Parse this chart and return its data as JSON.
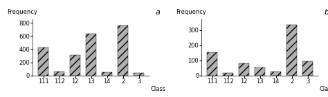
{
  "chart_a": {
    "title": "a",
    "ylabel": "Frequency",
    "xlabel": "Class",
    "categories": [
      "111",
      "112",
      "12",
      "13",
      "14",
      "2",
      "3"
    ],
    "values": [
      430,
      60,
      310,
      630,
      55,
      760,
      45
    ],
    "ylim": [
      0,
      850
    ],
    "yticks": [
      0,
      200,
      400,
      600,
      800
    ]
  },
  "chart_b": {
    "title": "b",
    "ylabel": "Frequency",
    "xlabel": "Class",
    "categories": [
      "111",
      "112",
      "12",
      "13",
      "14",
      "2",
      "3"
    ],
    "values": [
      155,
      20,
      80,
      55,
      25,
      335,
      95
    ],
    "ylim": [
      0,
      370
    ],
    "yticks": [
      0,
      100,
      200,
      300
    ]
  },
  "bar_color": "#b0b0b0",
  "bar_hatch": "///",
  "background_color": "#ffffff",
  "title_fontsize": 8,
  "label_fontsize": 6,
  "tick_fontsize": 6
}
